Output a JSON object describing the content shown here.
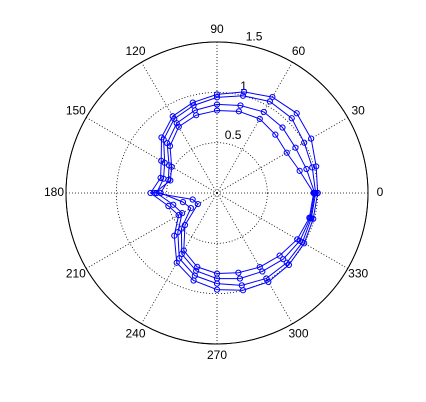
{
  "chart_data": {
    "type": "polar",
    "theta": [
      0,
      15,
      30,
      45,
      60,
      75,
      90,
      105,
      120,
      135,
      150,
      165,
      180,
      195,
      210,
      225,
      240,
      255,
      270,
      285,
      300,
      315,
      330,
      345,
      360
    ],
    "series": [
      {
        "color": "#0000ff",
        "values": [
          1.0,
          1.02,
          1.08,
          1.12,
          1.1,
          1.04,
          0.98,
          0.93,
          0.88,
          0.78,
          0.64,
          0.58,
          0.66,
          0.5,
          0.44,
          0.6,
          0.8,
          0.9,
          0.96,
          1.0,
          1.02,
          1.01,
          1.0,
          0.99,
          1.0
        ]
      },
      {
        "color": "#0000ff",
        "values": [
          0.98,
          0.98,
          1.0,
          1.05,
          1.05,
          1.0,
          0.95,
          0.9,
          0.85,
          0.75,
          0.6,
          0.55,
          0.6,
          0.45,
          0.4,
          0.55,
          0.75,
          0.85,
          0.9,
          0.95,
          0.98,
          0.98,
          0.98,
          0.97,
          0.98
        ]
      },
      {
        "color": "#0000ff",
        "values": [
          0.97,
          0.92,
          0.9,
          0.92,
          0.93,
          0.9,
          0.88,
          0.85,
          0.8,
          0.7,
          0.55,
          0.5,
          0.56,
          0.35,
          0.3,
          0.5,
          0.7,
          0.8,
          0.85,
          0.88,
          0.9,
          0.93,
          0.95,
          0.96,
          0.97
        ]
      },
      {
        "color": "#0000ff",
        "values": [
          0.96,
          0.85,
          0.8,
          0.82,
          0.85,
          0.84,
          0.82,
          0.8,
          0.76,
          0.66,
          0.52,
          0.48,
          0.62,
          0.25,
          0.22,
          0.45,
          0.66,
          0.76,
          0.8,
          0.82,
          0.85,
          0.88,
          0.92,
          0.95,
          0.96
        ]
      }
    ],
    "rlim": [
      0,
      1.5
    ],
    "rticks": [
      0.5,
      1,
      1.5
    ],
    "thetaticks": [
      0,
      30,
      60,
      90,
      120,
      150,
      180,
      210,
      240,
      270,
      300,
      330
    ],
    "grid": true
  }
}
